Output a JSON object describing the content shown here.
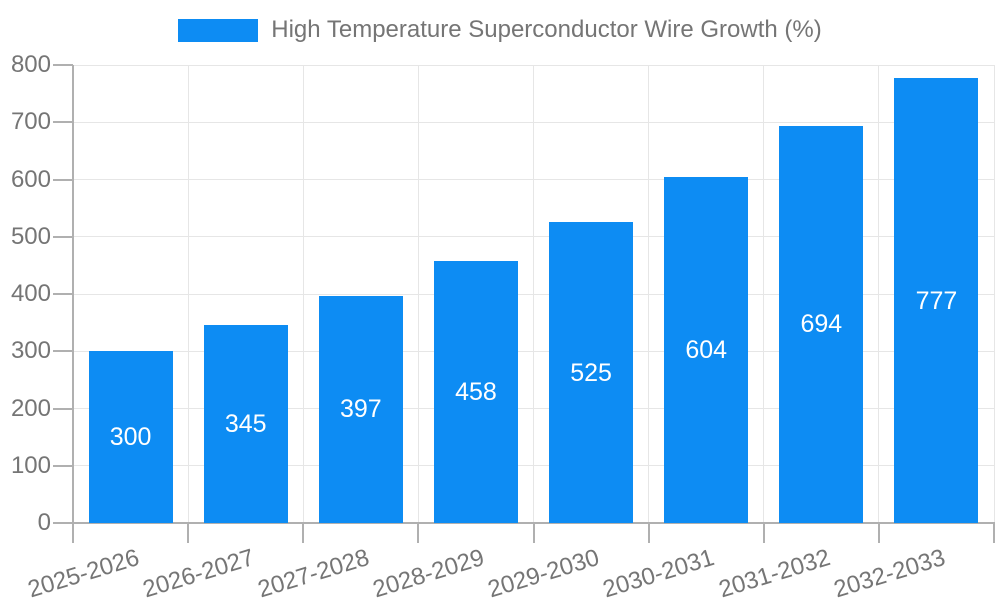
{
  "chart_data": {
    "type": "bar",
    "title": "High Temperature Superconductor Wire Growth (%)",
    "categories": [
      "2025-2026",
      "2026-2027",
      "2027-2028",
      "2028-2029",
      "2029-2030",
      "2030-2031",
      "2031-2032",
      "2032-2033"
    ],
    "series": [
      {
        "name": "High Temperature Superconductor Wire Growth (%)",
        "values": [
          300,
          345,
          397,
          458,
          525,
          604,
          694,
          777
        ]
      }
    ],
    "xlabel": "",
    "ylabel": "",
    "ylim": [
      0,
      800
    ],
    "ytick_step": 100,
    "yticks": [
      0,
      100,
      200,
      300,
      400,
      500,
      600,
      700,
      800
    ],
    "grid": true,
    "legend_position": "top",
    "bar_value_labels_visible": true
  },
  "colors": {
    "bar": "#0d8cf3",
    "grid": "#e6e6e6",
    "axis": "#b0b0b0",
    "tick_text": "#757575",
    "legend_text": "#757575",
    "bar_label_text": "#ffffff",
    "background": "#ffffff"
  }
}
